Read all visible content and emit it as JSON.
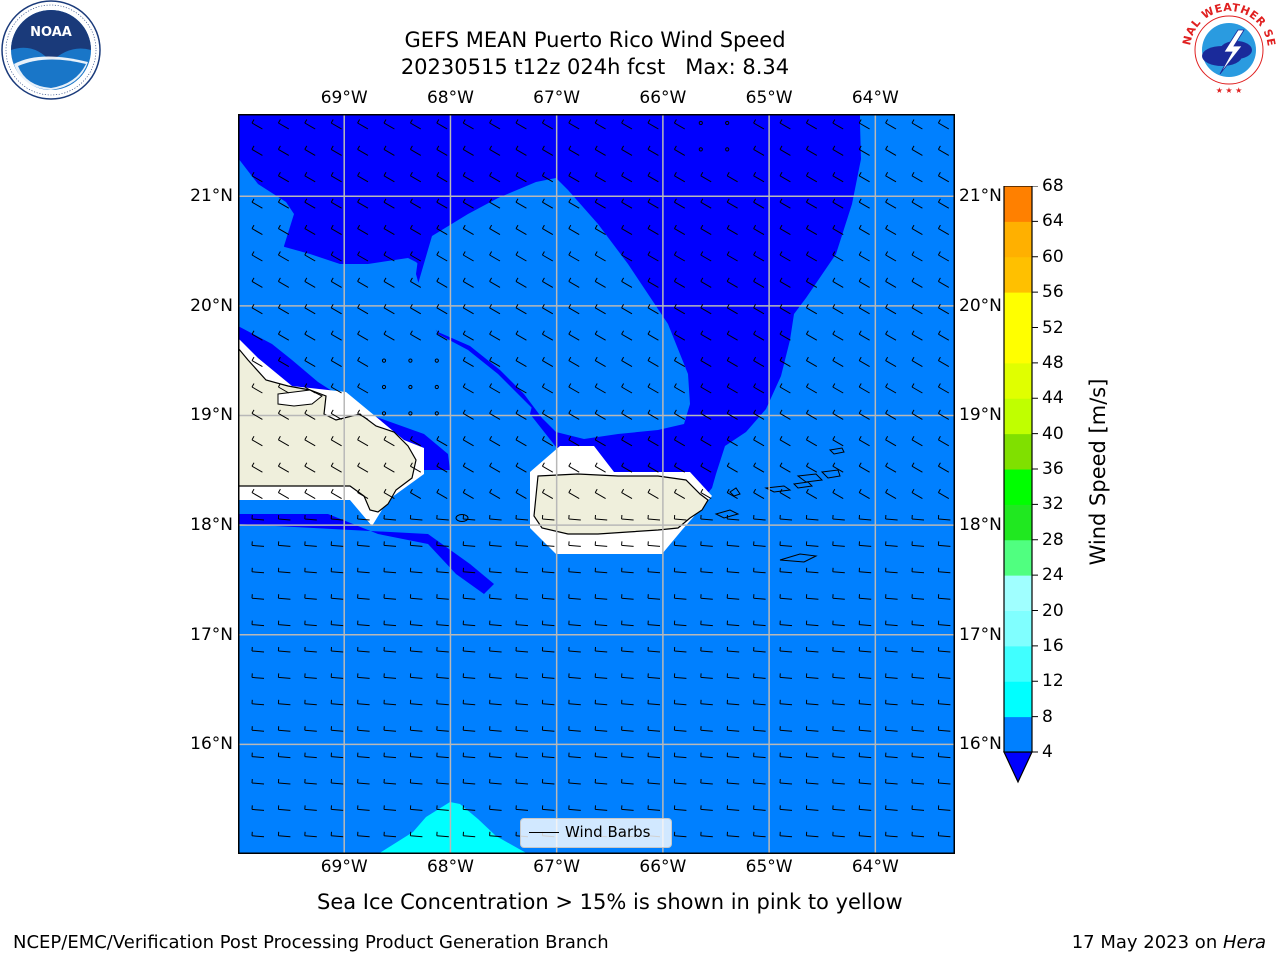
{
  "title_line1": "GEFS MEAN Puerto Rico Wind Speed",
  "title_line2": "20230515 t12z 024h fcst   Max: 8.34",
  "lon_labels": [
    "69°W",
    "68°W",
    "67°W",
    "66°W",
    "65°W",
    "64°W"
  ],
  "lat_labels": [
    "21°N",
    "20°N",
    "19°N",
    "18°N",
    "17°N",
    "16°N"
  ],
  "legend_label": "Wind Barbs",
  "colorbar": {
    "label": "Wind Speed [m/s]",
    "ticks": [
      "68",
      "64",
      "60",
      "56",
      "52",
      "48",
      "44",
      "40",
      "36",
      "32",
      "28",
      "24",
      "20",
      "16",
      "12",
      "8",
      "4"
    ],
    "colors": [
      "#0000ff",
      "#0080ff",
      "#00ffff",
      "#40ffff",
      "#80ffff",
      "#a0ffff",
      "#50ff80",
      "#20e820",
      "#00ff00",
      "#80e000",
      "#c0ff00",
      "#e0ff00",
      "#ffff00",
      "#ffff00",
      "#ffc000",
      "#ffb000",
      "#ff8000",
      "#ff6000",
      "#ff2000",
      "#ff0000"
    ]
  },
  "ice_note": "Sea Ice Concentration > 15% is shown in pink to yellow",
  "footer_left": "NCEP/EMC/Verification Post Processing Product Generation Branch",
  "footer_date": "17 May 2023 on ",
  "footer_host": "Hera",
  "logos": {
    "noaa": "NOAA",
    "nws": "NATIONAL WEATHER SERVICE"
  },
  "map_data": {
    "region": "Puerto Rico",
    "lon_range": [
      -70,
      -63.25
    ],
    "lat_range": [
      15,
      21.75
    ],
    "field": "wind speed",
    "units": "m/s",
    "max": 8.34,
    "land_color": "#efefdc",
    "level_colors": {
      "below_4": "#0000ff",
      "4_8": "#0080ff",
      "8_12": "#00ffff"
    }
  }
}
